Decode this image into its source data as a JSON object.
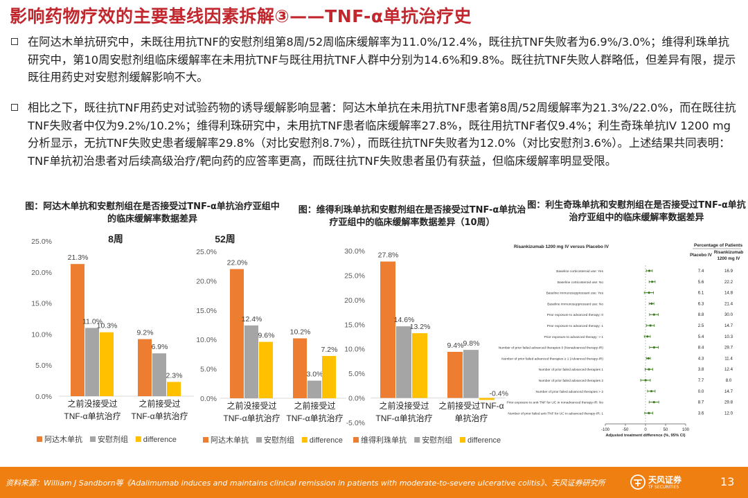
{
  "title": "影响药物疗效的主要基线因素拆解③——TNF-α单抗治疗史",
  "bullets": [
    "在阿达木单抗研究中，未既往用抗TNF的安慰剂组第8周/52周临床缓解率为11.0%/12.4%，既往抗TNF失败者为6.9%/3.0%；维得利珠单抗研究中，第10周安慰剂组临床缓解率在未用抗TNF与既往用抗TNF人群中分别为14.6%和9.8%。既往抗TNF失败人群略低，但差异有限，提示既往用药史对安慰剂缓解影响不大。",
    "相比之下，既往抗TNF用药史对试验药物的诱导缓解影响显著：阿达木单抗在未用抗TNF患者第8周/52周缓解率为21.3%/22.0%，而在既往抗TNF失败者中仅为9.2%/10.2%；维得利珠研究中，未用抗TNF患者临床缓解率27.8%，既往用抗TNF者仅9.4%；利生奇珠单抗IV 1200 mg分析显示，无抗TNF失败史患者缓解率29.8%（对比安慰剂8.7%），而既往抗TNF失败者为12.0%（对比安慰剂3.6%）。上述结果共同表明：TNF单抗初治患者对后续高级治疗/靶向药的应答率更高，而既往抗TNF失败患者虽仍有获益，但临床缓解率明显受限。"
  ],
  "captions": {
    "fig1": "图：阿达木单抗和安慰剂组在是否接受过TNF-α单抗治疗亚组中的临床缓解率数据差异",
    "fig2": "图：维得利珠单抗和安慰剂组在是否接受过TNF-α单抗治疗亚组中的临床缓解率数据差异（10周）",
    "fig3": "图：利生奇珠单抗和安慰剂组在是否接受过TNF-α单抗治疗亚组中的临床缓解率数据差异"
  },
  "footer": {
    "source": "资料来源：William J Sandborn等《Adalimumab induces and maintains clinical remission in patients with moderate-to-severe ulcerative colitis》、天风证券研究所",
    "logo_name": "天风证券",
    "logo_sub": "TF SECURITIES",
    "page": "13"
  },
  "colors": {
    "drug": "#ed7d31",
    "placebo": "#a5a5a5",
    "difference": "#ffc000",
    "title": "#c1272d",
    "footer": "#f07f12",
    "forest": "#3a7d1e"
  },
  "chart_data": [
    {
      "type": "bar",
      "title": "8周",
      "categories": [
        "之前没接受过TNF-α单抗治疗",
        "之前接受过TNF-α单抗治疗"
      ],
      "category_lines": [
        [
          "之前没接受过",
          "TNF-α单抗治疗"
        ],
        [
          "之前接受过",
          "TNF-α单抗治疗"
        ]
      ],
      "series": [
        {
          "name": "阿达木单抗",
          "values": [
            21.3,
            9.2
          ]
        },
        {
          "name": "安慰剂组",
          "values": [
            11.0,
            6.9
          ]
        },
        {
          "name": "difference",
          "values": [
            10.3,
            2.3
          ]
        }
      ],
      "value_labels": [
        [
          "21.3%",
          "9.2%"
        ],
        [
          "11.0%",
          "6.9%"
        ],
        [
          "10.3%",
          "2.3%"
        ]
      ],
      "ylim": [
        0,
        25
      ],
      "yticks": [
        0,
        5,
        10,
        15,
        20,
        25
      ],
      "ytick_labels": [
        "0.0%",
        "5.0%",
        "10.0%",
        "15.0%",
        "20.0%",
        "25.0%"
      ]
    },
    {
      "type": "bar",
      "title": "52周",
      "categories": [
        "之前没接受过TNF-α单抗治疗",
        "之前接受过TNF-α单抗治疗"
      ],
      "category_lines": [
        [
          "之前没接受过",
          "TNF-α单抗治疗"
        ],
        [
          "之前接受过",
          "TNF-α单抗治疗"
        ]
      ],
      "series": [
        {
          "name": "阿达木单抗",
          "values": [
            22.0,
            10.2
          ]
        },
        {
          "name": "安慰剂组",
          "values": [
            12.4,
            3.0
          ]
        },
        {
          "name": "difference",
          "values": [
            9.6,
            7.2
          ]
        }
      ],
      "value_labels": [
        [
          "22.0%",
          "10.2%"
        ],
        [
          "12.4%",
          "3.0%"
        ],
        [
          "9.6%",
          "7.2%"
        ]
      ],
      "ylim": [
        0,
        25
      ],
      "yticks": [
        0,
        5,
        10,
        15,
        20,
        25
      ],
      "ytick_labels": [
        "0.0%",
        "5.0%",
        "10.0%",
        "15.0%",
        "20.0%",
        "25.0%"
      ]
    },
    {
      "type": "bar",
      "title": "",
      "categories": [
        "之前没接受过TNF-α单抗治疗",
        "之前接受过TNF-α单抗治疗"
      ],
      "category_lines": [
        [
          "之前没接受过",
          "TNF-α单抗治疗"
        ],
        [
          "之前接受过TNF-α",
          "单抗治疗"
        ]
      ],
      "series": [
        {
          "name": "维得利珠单抗",
          "values": [
            27.8,
            9.4
          ]
        },
        {
          "name": "安慰剂组",
          "values": [
            14.6,
            9.8
          ]
        },
        {
          "name": "difference",
          "values": [
            13.2,
            -0.4
          ]
        }
      ],
      "value_labels": [
        [
          "27.8%",
          "9.4%"
        ],
        [
          "14.6%",
          "9.8%"
        ],
        [
          "13.2%",
          "-0.4%"
        ]
      ],
      "ylim": [
        -5,
        30
      ],
      "yticks": [
        -5,
        0,
        5,
        10,
        15,
        20,
        25,
        30
      ],
      "ytick_labels": [
        "-5.0%",
        "0.0%",
        "5.0%",
        "10.0%",
        "15.0%",
        "20.0%",
        "25.0%",
        "30.0%"
      ]
    },
    {
      "type": "forest",
      "title": "Risankizumab 1200 mg IV versus Placebo IV",
      "header": "Percentage of Patients",
      "col_placebo": "Placebo IV",
      "col_drug": [
        "Risankizumab",
        "1200 mg IV"
      ],
      "xlabel": "Adjusted treatment difference (%, 95% CI)",
      "xlim": [
        -100,
        100
      ],
      "xticks": [
        -100,
        -50,
        0,
        50,
        100
      ],
      "rows": [
        {
          "label": "Baseline corticosteroid use: Yes",
          "placebo": "7.4",
          "drug": "16.9",
          "diff": 9.5,
          "lo": 2,
          "hi": 17
        },
        {
          "label": "Baseline corticosteroid use: No",
          "placebo": "5.6",
          "drug": "22.2",
          "diff": 16.6,
          "lo": 9,
          "hi": 24
        },
        {
          "label": "Baseline immunosuppressant use: Yes",
          "placebo": "6.1",
          "drug": "14.8",
          "diff": 8.7,
          "lo": -3,
          "hi": 20
        },
        {
          "label": "Baseline immunosuppressant use: No",
          "placebo": "6.3",
          "drug": "21.4",
          "diff": 15.1,
          "lo": 9,
          "hi": 21
        },
        {
          "label": "Prior exposure to advanced therapy: 0",
          "placebo": "8.8",
          "drug": "30.0",
          "diff": 21.2,
          "lo": 10,
          "hi": 32
        },
        {
          "label": "Prior exposure to advanced therapy: 1",
          "placebo": "2.5",
          "drug": "14.7",
          "diff": 12.2,
          "lo": 2,
          "hi": 22
        },
        {
          "label": "Prior exposure to advanced therapy: > 1",
          "placebo": "5.4",
          "drug": "10.3",
          "diff": 4.9,
          "lo": -3,
          "hi": 12
        },
        {
          "label": "Number of prior failed advanced therapies 0 (Nonadvanced therapy-IR)",
          "placebo": "8.4",
          "drug": "29.7",
          "diff": 21.3,
          "lo": 10,
          "hi": 32
        },
        {
          "label": "Number of prior failed advanced therapies ≥ 1 (Advanced therapy-IR)",
          "placebo": "4.3",
          "drug": "11.4",
          "diff": 7.1,
          "lo": 2,
          "hi": 12
        },
        {
          "label": "Number of prior failed advanced therapies 1",
          "placebo": "3.8",
          "drug": "12.4",
          "diff": 8.6,
          "lo": -1,
          "hi": 18
        },
        {
          "label": "Number of prior failed advanced therapies 2",
          "placebo": "7.7",
          "drug": "8.0",
          "diff": 0.3,
          "lo": -12,
          "hi": 12
        },
        {
          "label": "Number of prior failed advanced therapies > 2",
          "placebo": "0.0",
          "drug": "14.7",
          "diff": 14.7,
          "lo": 5,
          "hi": 24
        },
        {
          "label": "Prior exposure to anti-TNF for UC in nonadvanced therapy-IR: No",
          "placebo": "8.7",
          "drug": "29.8",
          "diff": 21.1,
          "lo": 9,
          "hi": 33
        },
        {
          "label": "Number of prior failed anti-TNF for UC in advanced therapy-IR: 1",
          "placebo": "3.6",
          "drug": "12.0",
          "diff": 8.4,
          "lo": -2,
          "hi": 18
        }
      ]
    }
  ]
}
